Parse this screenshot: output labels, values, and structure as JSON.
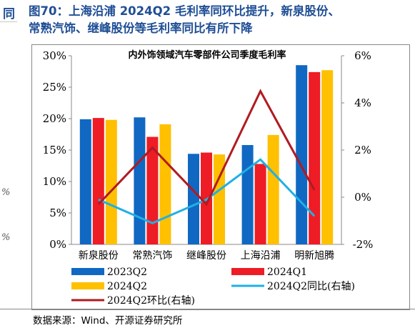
{
  "figure": {
    "title_line1": "图70：上海沿浦 2024Q2 毛利率同环比提升，新泉股份、",
    "title_line2": "常熟汽饰、继峰股份等毛利率同比有所下降",
    "source": "数据来源：Wind、开源证券研究所",
    "left_fragment": "同"
  },
  "chart_data": {
    "type": "bar",
    "title": "内外饰领域汽车零部件公司季度毛利率",
    "categories": [
      "新泉股份",
      "常熟汽饰",
      "继峰股份",
      "上海沿浦",
      "明新旭腾"
    ],
    "ylim": [
      0,
      30
    ],
    "y_ticks": [
      "0%",
      "5%",
      "10%",
      "15%",
      "20%",
      "25%",
      "30%"
    ],
    "y2lim": [
      -2,
      6
    ],
    "y2_ticks": [
      "-2%",
      "0%",
      "2%",
      "4%",
      "6%"
    ],
    "series": [
      {
        "name": "2023Q2",
        "type": "bar",
        "axis": "left",
        "color": "#1068c2",
        "values": [
          19.9,
          20.2,
          14.4,
          15.8,
          28.5
        ]
      },
      {
        "name": "2024Q1",
        "type": "bar",
        "axis": "left",
        "color": "#ee1c25",
        "values": [
          20.1,
          17.1,
          14.6,
          12.8,
          27.4
        ]
      },
      {
        "name": "2024Q2",
        "type": "bar",
        "axis": "left",
        "color": "#ffc000",
        "values": [
          19.8,
          19.1,
          14.3,
          17.4,
          27.7
        ]
      },
      {
        "name": "2024Q2同比(右轴)",
        "type": "line",
        "axis": "right",
        "color": "#1fb0e6",
        "values": [
          -0.1,
          -1.1,
          -0.1,
          1.6,
          -0.8
        ]
      },
      {
        "name": "2024Q2环比(右轴)",
        "type": "line",
        "axis": "right",
        "color": "#b01b21",
        "values": [
          -0.3,
          2.1,
          -0.3,
          4.5,
          0.3
        ]
      }
    ],
    "grid": false,
    "legend_position": "bottom"
  }
}
